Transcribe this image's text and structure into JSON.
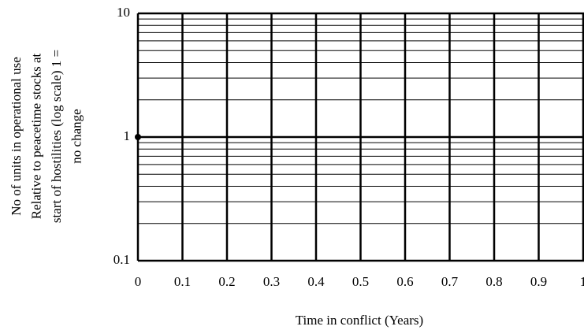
{
  "chart_data": {
    "type": "scatter",
    "xlabel": "Time in conflict (Years)",
    "ylabel": [
      "No of units in operational use",
      "Relative to peacetime stocks at",
      "start of hostilities (log scale) 1 =",
      "no change"
    ],
    "series": [
      {
        "color": "#000000",
        "x": [
          0
        ],
        "values": [
          1
        ]
      }
    ],
    "xlim": [
      0,
      1
    ],
    "xticks": [
      0,
      0.1,
      0.2,
      0.3,
      0.4,
      0.5,
      0.6,
      0.7,
      0.8,
      0.9,
      1
    ],
    "ylim": [
      0.1,
      10
    ],
    "yticks": [
      0.1,
      1,
      10
    ],
    "yminor": [
      0.2,
      0.3,
      0.4,
      0.5,
      0.6,
      0.7,
      0.8,
      0.9,
      2,
      3,
      4,
      5,
      6,
      7,
      8,
      9
    ],
    "log_y": true,
    "grid": true
  }
}
